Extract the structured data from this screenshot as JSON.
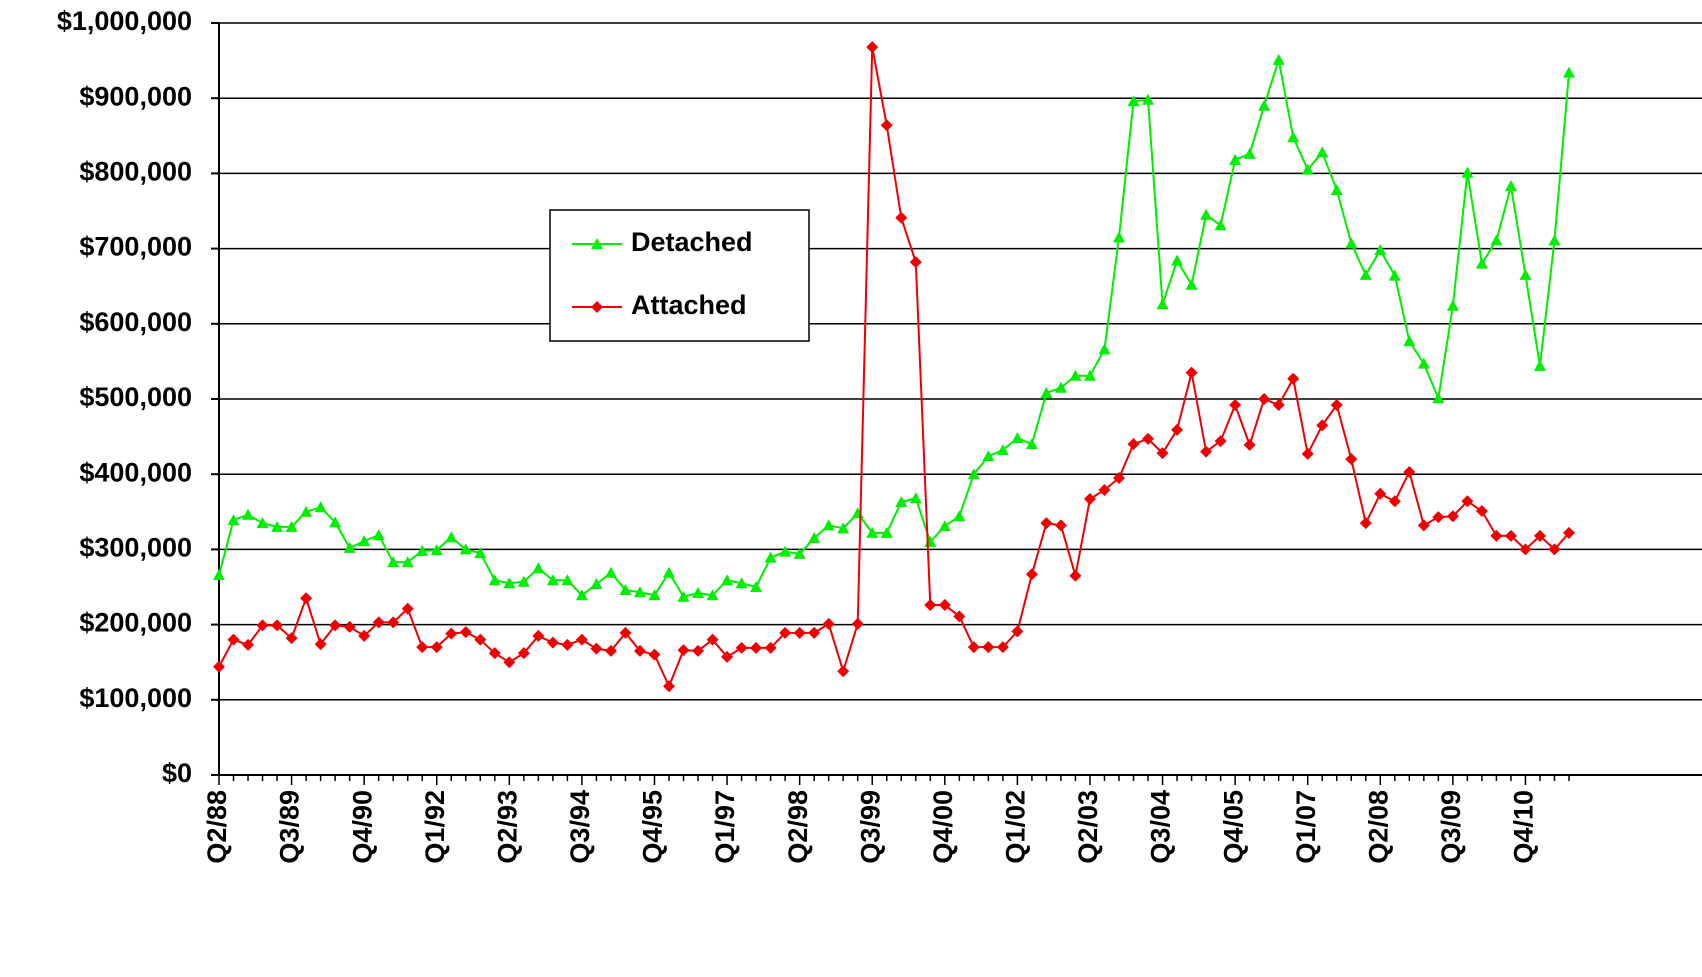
{
  "chart_data": {
    "type": "line",
    "categories": [
      "Q2/88",
      null,
      null,
      null,
      null,
      "Q3/89",
      null,
      null,
      null,
      null,
      "Q4/90",
      null,
      null,
      null,
      null,
      "Q1/92",
      null,
      null,
      null,
      null,
      "Q2/93",
      null,
      null,
      null,
      null,
      "Q3/94",
      null,
      null,
      null,
      null,
      "Q4/95",
      null,
      null,
      null,
      null,
      "Q1/97",
      null,
      null,
      null,
      null,
      "Q2/98",
      null,
      null,
      null,
      null,
      "Q3/99",
      null,
      null,
      null,
      null,
      "Q4/00",
      null,
      null,
      null,
      null,
      "Q1/02",
      null,
      null,
      null,
      null,
      "Q2/03",
      null,
      null,
      null,
      null,
      "Q3/04",
      null,
      null,
      null,
      null,
      "Q4/05",
      null,
      null,
      null,
      null,
      "Q1/07",
      null,
      null,
      null,
      null,
      "Q2/08",
      null,
      null,
      null,
      null,
      "Q3/09",
      null,
      null,
      null,
      null,
      "Q4/10",
      null,
      null,
      null
    ],
    "series": [
      {
        "name": "Detached",
        "color": "#00ee00",
        "marker": "triangle",
        "values": [
          266000,
          339000,
          346000,
          335000,
          330000,
          330000,
          350000,
          356000,
          336000,
          302000,
          311000,
          319000,
          283000,
          283000,
          298000,
          299000,
          316000,
          300000,
          295000,
          259000,
          255000,
          257000,
          275000,
          259000,
          259000,
          239000,
          254000,
          269000,
          246000,
          243000,
          239000,
          269000,
          237000,
          242000,
          239000,
          259000,
          255000,
          250000,
          289000,
          297000,
          294000,
          315000,
          332000,
          328000,
          348000,
          322000,
          322000,
          363000,
          368000,
          310000,
          331000,
          344000,
          400000,
          424000,
          432000,
          448000,
          440000,
          508000,
          515000,
          531000,
          531000,
          566000,
          715000,
          896000,
          898000,
          626000,
          684000,
          652000,
          745000,
          731000,
          818000,
          826000,
          890000,
          951000,
          848000,
          805000,
          828000,
          778000,
          707000,
          665000,
          698000,
          664000,
          577000,
          547000,
          501000,
          624000,
          801000,
          680000,
          711000,
          783000,
          665000,
          544000,
          711000,
          934000
        ]
      },
      {
        "name": "Attached",
        "color": "#ee0000",
        "marker": "diamond",
        "values": [
          144000,
          180000,
          173000,
          199000,
          199000,
          182000,
          235000,
          174000,
          199000,
          197000,
          185000,
          203000,
          203000,
          221000,
          170000,
          170000,
          188000,
          190000,
          180000,
          162000,
          150000,
          162000,
          185000,
          176000,
          173000,
          180000,
          168000,
          165000,
          189000,
          165000,
          160000,
          118000,
          166000,
          165000,
          180000,
          157000,
          169000,
          169000,
          169000,
          189000,
          189000,
          189000,
          201000,
          138000,
          201000,
          968000,
          864000,
          741000,
          682000,
          226000,
          226000,
          211000,
          170000,
          170000,
          170000,
          191000,
          267000,
          335000,
          332000,
          265000,
          367000,
          379000,
          395000,
          440000,
          447000,
          428000,
          459000,
          535000,
          430000,
          444000,
          492000,
          439000,
          500000,
          492000,
          527000,
          427000,
          465000,
          492000,
          420000,
          335000,
          374000,
          364000,
          403000,
          332000,
          343000,
          344000,
          364000,
          351000,
          318000,
          318000,
          300000,
          318000,
          300000,
          322000
        ]
      }
    ],
    "ylim": [
      0,
      1000000
    ],
    "yticks": [
      {
        "value": 0,
        "label": "$0"
      },
      {
        "value": 100000,
        "label": "$100,000"
      },
      {
        "value": 200000,
        "label": "$200,000"
      },
      {
        "value": 300000,
        "label": "$300,000"
      },
      {
        "value": 400000,
        "label": "$400,000"
      },
      {
        "value": 500000,
        "label": "$500,000"
      },
      {
        "value": 600000,
        "label": "$600,000"
      },
      {
        "value": 700000,
        "label": "$700,000"
      },
      {
        "value": 800000,
        "label": "$800,000"
      },
      {
        "value": 900000,
        "label": "$900,000"
      },
      {
        "value": 1000000,
        "label": "$1,000,000"
      }
    ],
    "grid": true,
    "legend": "center"
  }
}
